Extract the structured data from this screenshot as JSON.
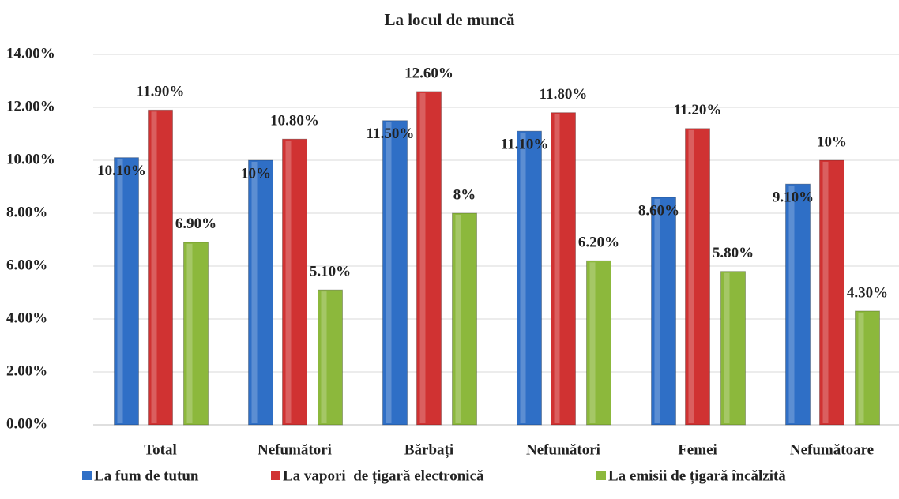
{
  "chart_data": {
    "type": "bar",
    "title": "La locul de muncă",
    "categories": [
      "Total",
      "Nefumători",
      "Bărbați",
      "Nefumători",
      "Femei",
      "Nefumătoare"
    ],
    "series": [
      {
        "name": "La fum de tutun",
        "color": "#2f6fc6",
        "values": [
          10.1,
          10,
          11.5,
          11.1,
          8.6,
          9.1
        ],
        "value_labels": [
          "10.10%",
          "10%",
          "11.50%",
          "11.10%",
          "8.60%",
          "9.10%"
        ]
      },
      {
        "name": "La vapori  de țigară electronică",
        "color": "#d03232",
        "values": [
          11.9,
          10.8,
          12.6,
          11.8,
          11.2,
          10
        ],
        "value_labels": [
          "11.90%",
          "10.80%",
          "12.60%",
          "11.80%",
          "11.20%",
          "10%"
        ]
      },
      {
        "name": "La emisii de țigară încălzită",
        "color": "#8cb83c",
        "values": [
          6.9,
          5.1,
          8,
          6.2,
          5.8,
          4.3
        ],
        "value_labels": [
          "6.90%",
          "5.10%",
          "8%",
          "6.20%",
          "5.80%",
          "4.30%"
        ]
      }
    ],
    "ylim": [
      0,
      14
    ],
    "yticks": [
      {
        "value": 0,
        "label": "0.00%"
      },
      {
        "value": 2,
        "label": "2.00%"
      },
      {
        "value": 4,
        "label": "4.00%"
      },
      {
        "value": 6,
        "label": "6.00%"
      },
      {
        "value": 8,
        "label": "8.00%"
      },
      {
        "value": 10,
        "label": "10.00%"
      },
      {
        "value": 12,
        "label": "12.00%"
      },
      {
        "value": 14,
        "label": "14.00%"
      }
    ],
    "grid": true,
    "legend": "bottom"
  }
}
